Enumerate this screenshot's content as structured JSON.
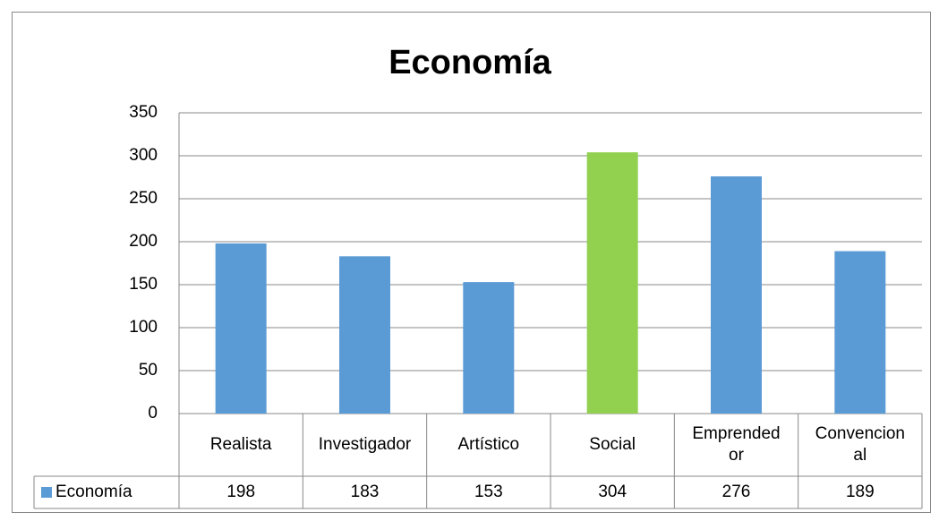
{
  "chart_data": {
    "type": "bar",
    "title": "Economía",
    "categories": [
      "Realista",
      "Investigador",
      "Artístico",
      "Social",
      "Emprendedor",
      "Convencional"
    ],
    "series": [
      {
        "name": "Economía",
        "color": "#5b9bd5",
        "values": [
          198,
          183,
          153,
          304,
          276,
          189
        ],
        "point_colors": [
          "#5b9bd5",
          "#5b9bd5",
          "#5b9bd5",
          "#92d050",
          "#5b9bd5",
          "#5b9bd5"
        ]
      }
    ],
    "ylim": [
      0,
      350
    ],
    "yticks": [
      0,
      50,
      100,
      150,
      200,
      250,
      300,
      350
    ],
    "grid": true,
    "data_table": true
  }
}
